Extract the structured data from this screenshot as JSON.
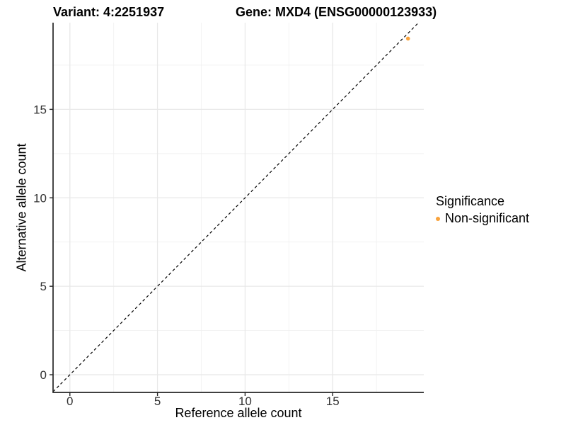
{
  "titles": {
    "variant": "Variant: 4:2251937",
    "gene": "Gene: MXD4 (ENSG00000123933)"
  },
  "legend": {
    "title": "Significance",
    "items": [
      {
        "label": "Non-significant",
        "color": "#F9A33C",
        "marker": "filled-circle"
      }
    ]
  },
  "chart_data": {
    "type": "scatter",
    "xlabel": "Reference allele count",
    "ylabel": "Alternative allele count",
    "xlim": [
      -0.96,
      20.2
    ],
    "ylim": [
      -1.0,
      19.9
    ],
    "x_ticks": [
      0,
      5,
      10,
      15
    ],
    "y_ticks": [
      0,
      5,
      10,
      15
    ],
    "x_minor_ticks": [
      2.5,
      7.5,
      12.5,
      17.5
    ],
    "y_minor_ticks": [
      2.5,
      7.5,
      12.5,
      17.5
    ],
    "grid": true,
    "legend_position": "right",
    "points": [
      {
        "x": 19.3,
        "y": 19.0,
        "series": "Non-significant",
        "color": "#F9A33C"
      }
    ],
    "reference_line": {
      "kind": "identity",
      "slope": 1,
      "intercept": 0,
      "linetype": "dashed",
      "color": "#000000"
    }
  },
  "colors": {
    "background": "#FFFFFF",
    "axis_line": "#262626",
    "tick_label": "#333333",
    "grid_major": "#E8E8E8",
    "grid_minor": "#F0F0F0",
    "point": "#F9A33C"
  }
}
